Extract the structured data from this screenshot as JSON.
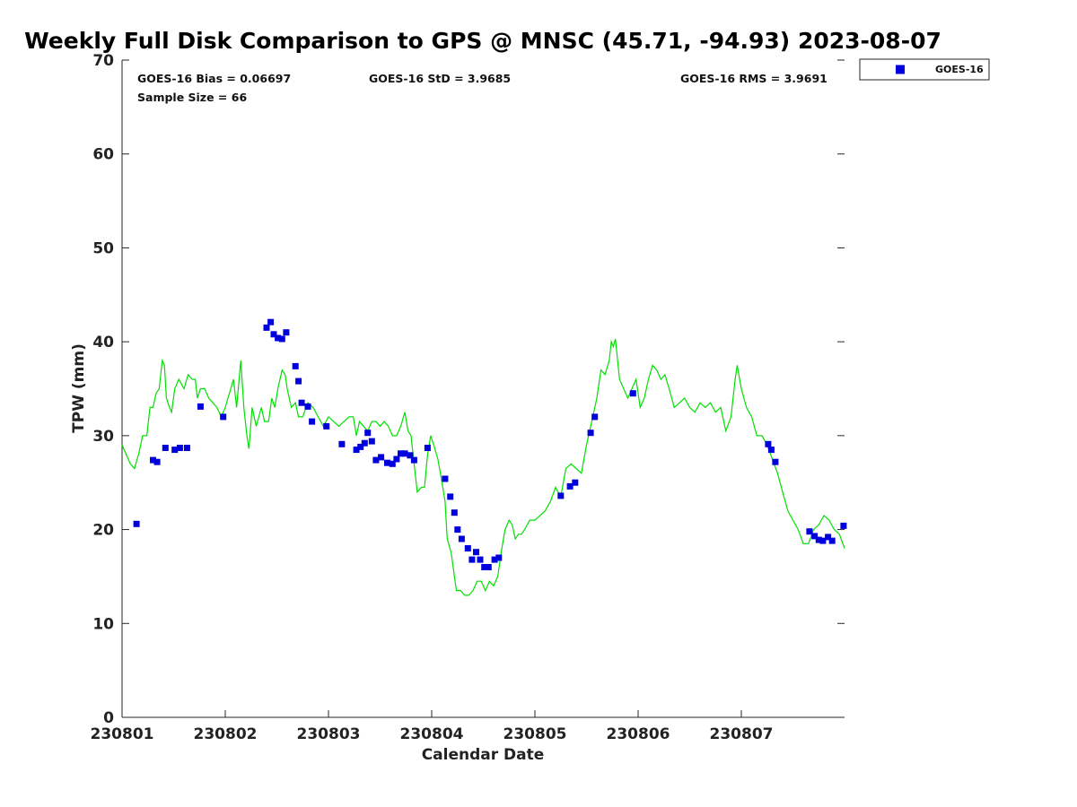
{
  "chart_data": {
    "type": "scatter",
    "title": "Weekly Full Disk Comparison to GPS @ MNSC (45.71, -94.93) 2023-08-07",
    "xlabel": "Calendar Date",
    "ylabel": "TPW (mm)",
    "xlim": [
      0,
      7
    ],
    "ylim": [
      0,
      70
    ],
    "x_ticks": [
      0,
      1,
      2,
      3,
      4,
      5,
      6
    ],
    "x_tick_labels": [
      "230801",
      "230802",
      "230803",
      "230804",
      "230805",
      "230806",
      "230807"
    ],
    "y_ticks": [
      0,
      10,
      20,
      30,
      40,
      50,
      60,
      70
    ],
    "y_tick_labels": [
      "0",
      "10",
      "20",
      "30",
      "40",
      "50",
      "60",
      "70"
    ],
    "stats": {
      "bias": "GOES-16 Bias = 0.06697",
      "std": "GOES-16 StD = 3.9685",
      "rms": "GOES-16 RMS = 3.9691",
      "sample": "Sample Size = 66"
    },
    "legend": {
      "position": "top-right-outside",
      "entries": [
        {
          "label": "GOES-16",
          "color": "#0000dd",
          "marker": "square"
        }
      ]
    },
    "series": [
      {
        "name": "GPS",
        "style": "line",
        "color": "#00e000",
        "points": [
          [
            0.0,
            29.0
          ],
          [
            0.04,
            28.0
          ],
          [
            0.08,
            27.0
          ],
          [
            0.12,
            26.5
          ],
          [
            0.16,
            28.0
          ],
          [
            0.2,
            30.0
          ],
          [
            0.24,
            30.0
          ],
          [
            0.27,
            33.0
          ],
          [
            0.3,
            33.0
          ],
          [
            0.33,
            34.5
          ],
          [
            0.36,
            35.0
          ],
          [
            0.39,
            38.0
          ],
          [
            0.41,
            37.5
          ],
          [
            0.43,
            34.0
          ],
          [
            0.46,
            33.0
          ],
          [
            0.48,
            32.5
          ],
          [
            0.51,
            35.0
          ],
          [
            0.55,
            36.0
          ],
          [
            0.6,
            35.0
          ],
          [
            0.64,
            36.5
          ],
          [
            0.68,
            36.0
          ],
          [
            0.71,
            36.0
          ],
          [
            0.73,
            34.0
          ],
          [
            0.76,
            35.0
          ],
          [
            0.8,
            35.0
          ],
          [
            0.84,
            34.0
          ],
          [
            0.88,
            33.5
          ],
          [
            0.92,
            33.0
          ],
          [
            0.96,
            32.0
          ],
          [
            1.0,
            33.0
          ],
          [
            1.04,
            34.5
          ],
          [
            1.08,
            36.0
          ],
          [
            1.11,
            33.0
          ],
          [
            1.15,
            38.0
          ],
          [
            1.18,
            33.0
          ],
          [
            1.21,
            30.0
          ],
          [
            1.23,
            28.6
          ],
          [
            1.26,
            33.0
          ],
          [
            1.3,
            31.0
          ],
          [
            1.35,
            33.0
          ],
          [
            1.38,
            31.5
          ],
          [
            1.42,
            31.5
          ],
          [
            1.45,
            34.0
          ],
          [
            1.48,
            33.0
          ],
          [
            1.51,
            35.0
          ],
          [
            1.55,
            37.0
          ],
          [
            1.58,
            36.5
          ],
          [
            1.6,
            35.0
          ],
          [
            1.64,
            33.0
          ],
          [
            1.68,
            33.5
          ],
          [
            1.71,
            32.0
          ],
          [
            1.75,
            32.0
          ],
          [
            1.8,
            33.5
          ],
          [
            1.85,
            33.0
          ],
          [
            1.9,
            32.0
          ],
          [
            1.95,
            31.0
          ],
          [
            2.0,
            32.0
          ],
          [
            2.05,
            31.5
          ],
          [
            2.1,
            31.0
          ],
          [
            2.15,
            31.5
          ],
          [
            2.2,
            32.0
          ],
          [
            2.24,
            32.0
          ],
          [
            2.27,
            30.0
          ],
          [
            2.3,
            31.5
          ],
          [
            2.34,
            31.0
          ],
          [
            2.38,
            30.5
          ],
          [
            2.42,
            31.5
          ],
          [
            2.46,
            31.5
          ],
          [
            2.5,
            31.0
          ],
          [
            2.54,
            31.5
          ],
          [
            2.58,
            31.0
          ],
          [
            2.62,
            30.0
          ],
          [
            2.66,
            30.0
          ],
          [
            2.7,
            31.0
          ],
          [
            2.74,
            32.5
          ],
          [
            2.77,
            30.5
          ],
          [
            2.8,
            30.0
          ],
          [
            2.83,
            27.0
          ],
          [
            2.86,
            24.0
          ],
          [
            2.9,
            24.5
          ],
          [
            2.93,
            24.5
          ],
          [
            2.96,
            28.0
          ],
          [
            2.99,
            30.0
          ],
          [
            3.02,
            29.0
          ],
          [
            3.06,
            27.5
          ],
          [
            3.1,
            25.0
          ],
          [
            3.13,
            23.0
          ],
          [
            3.15,
            19.0
          ],
          [
            3.19,
            17.5
          ],
          [
            3.22,
            15.0
          ],
          [
            3.24,
            13.5
          ],
          [
            3.28,
            13.5
          ],
          [
            3.32,
            13.0
          ],
          [
            3.36,
            13.0
          ],
          [
            3.4,
            13.5
          ],
          [
            3.44,
            14.5
          ],
          [
            3.48,
            14.5
          ],
          [
            3.52,
            13.5
          ],
          [
            3.56,
            14.5
          ],
          [
            3.6,
            14.0
          ],
          [
            3.64,
            15.0
          ],
          [
            3.68,
            18.0
          ],
          [
            3.71,
            20.0
          ],
          [
            3.75,
            21.0
          ],
          [
            3.78,
            20.5
          ],
          [
            3.81,
            19.0
          ],
          [
            3.84,
            19.5
          ],
          [
            3.87,
            19.5
          ],
          [
            3.9,
            20.0
          ],
          [
            3.95,
            21.0
          ],
          [
            4.0,
            21.0
          ],
          [
            4.05,
            21.5
          ],
          [
            4.1,
            22.0
          ],
          [
            4.15,
            23.0
          ],
          [
            4.2,
            24.5
          ],
          [
            4.25,
            23.5
          ],
          [
            4.3,
            26.5
          ],
          [
            4.35,
            27.0
          ],
          [
            4.4,
            26.5
          ],
          [
            4.45,
            26.0
          ],
          [
            4.5,
            29.0
          ],
          [
            4.55,
            31.5
          ],
          [
            4.6,
            34.0
          ],
          [
            4.64,
            37.0
          ],
          [
            4.68,
            36.5
          ],
          [
            4.72,
            38.0
          ],
          [
            4.74,
            40.0
          ],
          [
            4.76,
            39.5
          ],
          [
            4.78,
            40.3
          ],
          [
            4.82,
            36.0
          ],
          [
            4.86,
            35.0
          ],
          [
            4.9,
            34.0
          ],
          [
            4.94,
            35.0
          ],
          [
            4.98,
            36.0
          ],
          [
            5.02,
            33.0
          ],
          [
            5.06,
            34.0
          ],
          [
            5.1,
            36.0
          ],
          [
            5.14,
            37.5
          ],
          [
            5.18,
            37.0
          ],
          [
            5.22,
            36.0
          ],
          [
            5.26,
            36.5
          ],
          [
            5.3,
            35.0
          ],
          [
            5.35,
            33.0
          ],
          [
            5.4,
            33.5
          ],
          [
            5.45,
            34.0
          ],
          [
            5.5,
            33.0
          ],
          [
            5.55,
            32.5
          ],
          [
            5.6,
            33.5
          ],
          [
            5.65,
            33.0
          ],
          [
            5.7,
            33.5
          ],
          [
            5.75,
            32.5
          ],
          [
            5.8,
            33.0
          ],
          [
            5.85,
            30.5
          ],
          [
            5.9,
            32.0
          ],
          [
            5.94,
            36.0
          ],
          [
            5.96,
            37.5
          ],
          [
            6.0,
            35.0
          ],
          [
            6.05,
            33.0
          ],
          [
            6.1,
            32.0
          ],
          [
            6.15,
            30.0
          ],
          [
            6.2,
            30.0
          ],
          [
            6.25,
            29.0
          ],
          [
            6.3,
            27.5
          ],
          [
            6.35,
            26.0
          ],
          [
            6.4,
            24.0
          ],
          [
            6.45,
            22.0
          ],
          [
            6.5,
            21.0
          ],
          [
            6.55,
            20.0
          ],
          [
            6.6,
            18.5
          ],
          [
            6.65,
            18.5
          ],
          [
            6.7,
            20.0
          ],
          [
            6.75,
            20.5
          ],
          [
            6.8,
            21.5
          ],
          [
            6.85,
            21.0
          ],
          [
            6.9,
            20.0
          ],
          [
            6.95,
            19.5
          ],
          [
            7.0,
            18.0
          ]
        ]
      },
      {
        "name": "GOES-16",
        "style": "marker",
        "color": "#0000dd",
        "points": [
          [
            0.14,
            20.6
          ],
          [
            0.3,
            27.4
          ],
          [
            0.34,
            27.2
          ],
          [
            0.42,
            28.7
          ],
          [
            0.51,
            28.5
          ],
          [
            0.56,
            28.7
          ],
          [
            0.63,
            28.7
          ],
          [
            0.76,
            33.1
          ],
          [
            0.98,
            32.0
          ],
          [
            1.4,
            41.5
          ],
          [
            1.44,
            42.1
          ],
          [
            1.47,
            40.8
          ],
          [
            1.51,
            40.4
          ],
          [
            1.55,
            40.3
          ],
          [
            1.59,
            41.0
          ],
          [
            1.68,
            37.4
          ],
          [
            1.71,
            35.8
          ],
          [
            1.74,
            33.5
          ],
          [
            1.8,
            33.1
          ],
          [
            1.84,
            31.5
          ],
          [
            1.98,
            31.0
          ],
          [
            2.13,
            29.1
          ],
          [
            2.27,
            28.5
          ],
          [
            2.31,
            28.8
          ],
          [
            2.35,
            29.2
          ],
          [
            2.38,
            30.3
          ],
          [
            2.42,
            29.4
          ],
          [
            2.46,
            27.4
          ],
          [
            2.51,
            27.7
          ],
          [
            2.57,
            27.1
          ],
          [
            2.62,
            27.0
          ],
          [
            2.66,
            27.5
          ],
          [
            2.7,
            28.1
          ],
          [
            2.74,
            28.1
          ],
          [
            2.79,
            27.9
          ],
          [
            2.83,
            27.4
          ],
          [
            2.96,
            28.7
          ],
          [
            3.13,
            25.4
          ],
          [
            3.18,
            23.5
          ],
          [
            3.22,
            21.8
          ],
          [
            3.25,
            20.0
          ],
          [
            3.29,
            19.0
          ],
          [
            3.35,
            18.0
          ],
          [
            3.39,
            16.8
          ],
          [
            3.43,
            17.6
          ],
          [
            3.47,
            16.8
          ],
          [
            3.51,
            16.0
          ],
          [
            3.55,
            16.0
          ],
          [
            3.61,
            16.8
          ],
          [
            3.65,
            17.0
          ],
          [
            4.25,
            23.6
          ],
          [
            4.34,
            24.6
          ],
          [
            4.39,
            25.0
          ],
          [
            4.54,
            30.3
          ],
          [
            4.58,
            32.0
          ],
          [
            4.95,
            34.5
          ],
          [
            6.26,
            29.1
          ],
          [
            6.29,
            28.5
          ],
          [
            6.33,
            27.2
          ],
          [
            6.66,
            19.8
          ],
          [
            6.71,
            19.3
          ],
          [
            6.75,
            18.9
          ],
          [
            6.79,
            18.8
          ],
          [
            6.84,
            19.2
          ],
          [
            6.88,
            18.8
          ],
          [
            6.99,
            20.4
          ]
        ]
      }
    ]
  }
}
